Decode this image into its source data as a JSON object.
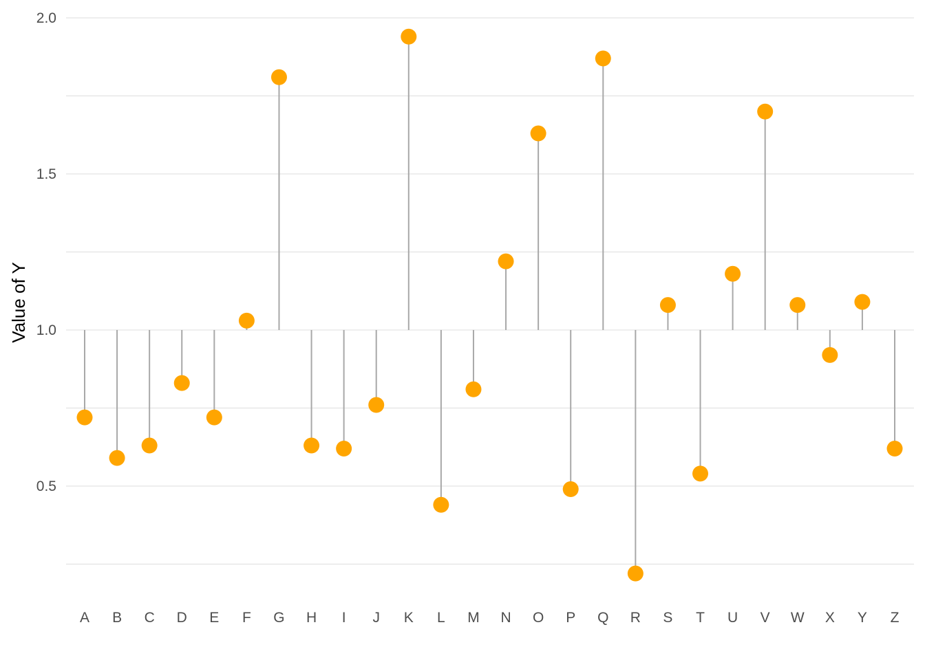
{
  "chart_data": {
    "type": "lollipop",
    "title": "",
    "xlabel": "",
    "ylabel": "Value of Y",
    "baseline": 1.0,
    "ylim": [
      0.12,
      2.03
    ],
    "grid": true,
    "y_ticks": [
      0.5,
      1.0,
      1.5,
      2.0
    ],
    "y_tick_labels": [
      "0.5",
      "1.0",
      "1.5",
      "2.0"
    ],
    "categories": [
      "A",
      "B",
      "C",
      "D",
      "E",
      "F",
      "G",
      "H",
      "I",
      "J",
      "K",
      "L",
      "M",
      "N",
      "O",
      "P",
      "Q",
      "R",
      "S",
      "T",
      "U",
      "V",
      "W",
      "X",
      "Y",
      "Z"
    ],
    "values": [
      0.72,
      0.59,
      0.63,
      0.83,
      0.72,
      1.03,
      1.81,
      0.63,
      0.62,
      0.76,
      1.94,
      0.44,
      0.81,
      1.22,
      1.63,
      0.49,
      1.87,
      0.22,
      1.08,
      0.54,
      1.18,
      1.7,
      1.08,
      0.92,
      1.09,
      0.62
    ],
    "colors": {
      "point": "#FFA500",
      "stem": "#a8a8a8",
      "grid": "#dedede"
    }
  }
}
